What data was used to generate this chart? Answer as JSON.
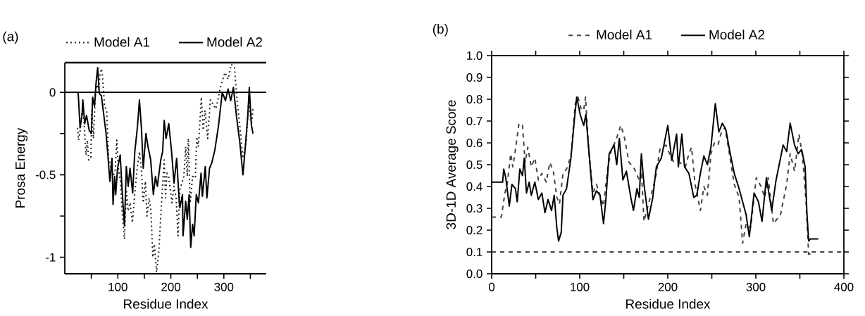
{
  "chart_data": [
    {
      "type": "line",
      "title": "(a)",
      "xlabel": "Residue Index",
      "ylabel": "Prosa Energy",
      "xlim": [
        0,
        380
      ],
      "ylim": [
        -1.1,
        0.18
      ],
      "xticks": [
        {
          "value": 50,
          "label": null
        },
        100,
        {
          "value": 150,
          "label": null
        },
        200,
        {
          "value": 250,
          "label": null
        },
        300,
        {
          "value": 350,
          "label": null
        }
      ],
      "yticks": [
        {
          "value": -1,
          "label": "-1"
        },
        {
          "value": -0.75,
          "label": null
        },
        {
          "value": -0.5,
          "label": "-0.5"
        },
        {
          "value": -0.25,
          "label": null
        },
        {
          "value": 0,
          "label": "0"
        }
      ],
      "legend": "top",
      "ref_lines": [
        {
          "axis": "y",
          "value": 0,
          "color": "#000000",
          "line_style": "solid"
        }
      ],
      "series": [
        {
          "name": "Model A1",
          "color": "#222222",
          "line_style": "dotted",
          "x": [
            24,
            26,
            29,
            32.5,
            36,
            40,
            42.5,
            45,
            49,
            51,
            54,
            57.5,
            60,
            64,
            66,
            69,
            71,
            75,
            79,
            82.5,
            87.5,
            91,
            95,
            98,
            101,
            105,
            108,
            112.5,
            116,
            119.5,
            123,
            127.5,
            132,
            137,
            140.75,
            144.5,
            148,
            152,
            155,
            159,
            162.5,
            166,
            169,
            173,
            177.5,
            181,
            187.5,
            190,
            192.5,
            196,
            202,
            206,
            210,
            213.5,
            217,
            224.5,
            228,
            231,
            233,
            236.5,
            241,
            246,
            249,
            252,
            257.5,
            261,
            264.5,
            269.5,
            274.5,
            285,
            295,
            302,
            308,
            314,
            320,
            325,
            330,
            336,
            342,
            347,
            352,
            355
          ],
          "values": [
            -0.215,
            -0.29,
            -0.23,
            -0.12,
            -0.16,
            -0.38,
            -0.29,
            -0.41,
            -0.4,
            -0.11,
            -0.28,
            -0.02,
            0.046,
            0.02,
            0.1,
            0.143,
            0.1,
            -0.085,
            -0.11,
            -0.4,
            -0.46,
            -0.51,
            -0.47,
            -0.29,
            -0.46,
            -0.54,
            -0.72,
            -0.89,
            -0.59,
            -0.72,
            -0.67,
            -0.79,
            -0.61,
            -0.45,
            -0.36,
            -0.47,
            -0.67,
            -0.54,
            -0.75,
            -0.64,
            -0.72,
            -1.0,
            -0.92,
            -1.09,
            -0.96,
            -0.75,
            -0.41,
            -0.64,
            -0.49,
            -0.51,
            -0.67,
            -0.57,
            -0.64,
            -0.87,
            -0.59,
            -0.51,
            -0.33,
            -0.51,
            -0.28,
            -0.67,
            -0.51,
            -0.52,
            -0.27,
            -0.33,
            -0.03,
            -0.23,
            -0.11,
            -0.28,
            -0.046,
            -0.1,
            0.05,
            0.12,
            0.08,
            0.17,
            0.15,
            -0.05,
            -0.2,
            -0.4,
            -0.3,
            -0.05,
            -0.2,
            -0.1
          ]
        },
        {
          "name": "Model A2",
          "color": "#000000",
          "line_style": "solid",
          "x": [
            25,
            26,
            28.75,
            32.5,
            34,
            37.5,
            41,
            46,
            50,
            52.5,
            56,
            59,
            62,
            65,
            69,
            74,
            77.5,
            81,
            85,
            89,
            91,
            94,
            96,
            99.5,
            104.5,
            108,
            112.5,
            116,
            119.5,
            123,
            128,
            132,
            137,
            140.75,
            144.5,
            148,
            153,
            157,
            162,
            167,
            171,
            174.5,
            181,
            184.5,
            187.5,
            191,
            196,
            201,
            206,
            211,
            216,
            217,
            222,
            223,
            228,
            231,
            234.5,
            237.5,
            241,
            244,
            248,
            252,
            257,
            259.5,
            265,
            268,
            273,
            277,
            283,
            290,
            297,
            303,
            308,
            313,
            318,
            324,
            330,
            336,
            340,
            345,
            348,
            352,
            355
          ],
          "values": [
            0,
            -0.046,
            -0.215,
            -0.137,
            -0.046,
            -0.19,
            -0.14,
            -0.23,
            -0.25,
            -0.03,
            -0.085,
            0.06,
            0.15,
            -0.007,
            -0.02,
            -0.15,
            -0.24,
            -0.37,
            -0.54,
            -0.4,
            -0.68,
            -0.51,
            -0.62,
            -0.46,
            -0.38,
            -0.59,
            -0.81,
            -0.45,
            -0.57,
            -0.46,
            -0.61,
            -0.36,
            -0.21,
            -0.046,
            -0.215,
            -0.46,
            -0.25,
            -0.33,
            -0.41,
            -0.62,
            -0.51,
            -0.57,
            -0.41,
            -0.36,
            -0.17,
            -0.28,
            -0.19,
            -0.345,
            -0.55,
            -0.4,
            -0.67,
            -0.7,
            -0.62,
            -0.87,
            -0.66,
            -0.77,
            -0.62,
            -0.94,
            -0.8,
            -0.87,
            -0.62,
            -0.67,
            -0.49,
            -0.63,
            -0.45,
            -0.64,
            -0.46,
            -0.43,
            -0.35,
            -0.2,
            0,
            -0.05,
            0.02,
            -0.05,
            0.03,
            -0.15,
            -0.3,
            -0.5,
            -0.35,
            -0.15,
            0.03,
            -0.2,
            -0.25
          ]
        }
      ]
    },
    {
      "type": "line",
      "title": "(b)",
      "xlabel": "Residue Index",
      "ylabel": "3D-1D Average Score",
      "xlim": [
        0,
        400
      ],
      "ylim": [
        0,
        1
      ],
      "xticks": [
        0,
        {
          "value": 50,
          "label": null
        },
        100,
        {
          "value": 150,
          "label": null
        },
        200,
        {
          "value": 250,
          "label": null
        },
        300,
        {
          "value": 350,
          "label": null
        },
        400
      ],
      "yticks": [
        {
          "value": 0,
          "label": "0.0"
        },
        {
          "value": 0.1,
          "label": "0.1"
        },
        {
          "value": 0.2,
          "label": "0.2"
        },
        {
          "value": 0.3,
          "label": "0.3"
        },
        {
          "value": 0.4,
          "label": "0.4"
        },
        {
          "value": 0.5,
          "label": "0.5"
        },
        {
          "value": 0.6,
          "label": "0.6"
        },
        {
          "value": 0.7,
          "label": "0.7"
        },
        {
          "value": 0.8,
          "label": "0.8"
        },
        {
          "value": 0.9,
          "label": "0.9"
        },
        {
          "value": 1,
          "label": "1.0"
        }
      ],
      "legend": "top",
      "ref_lines": [
        {
          "axis": "y",
          "value": 0.1,
          "color": "#444444",
          "line_style": "dashed"
        }
      ],
      "series": [
        {
          "name": "Model A1",
          "color": "#444444",
          "line_style": "dashed",
          "x": [
            0,
            11,
            15,
            17.6,
            21.6,
            24,
            27,
            31,
            35,
            38,
            41,
            45,
            49,
            53,
            57,
            62,
            66,
            70,
            74,
            77,
            81,
            85,
            90,
            95,
            98,
            102,
            104.5,
            106.6,
            110,
            115,
            119,
            127,
            132,
            136,
            141,
            146.6,
            150.5,
            156,
            161,
            167.6,
            170,
            173,
            178,
            183,
            187,
            191,
            198,
            202,
            207,
            213.7,
            220,
            224,
            227,
            231,
            237,
            241,
            245,
            249,
            253,
            257,
            261,
            265,
            270,
            275.5,
            281,
            285,
            289,
            294,
            300.5,
            306,
            310,
            314,
            320,
            328,
            335,
            339,
            344,
            349,
            353,
            357,
            360,
            365
          ],
          "values": [
            0.26,
            0.26,
            0.37,
            0.41,
            0.55,
            0.49,
            0.57,
            0.69,
            0.68,
            0.51,
            0.58,
            0.49,
            0.53,
            0.43,
            0.46,
            0.42,
            0.51,
            0.47,
            0.35,
            0.32,
            0.46,
            0.48,
            0.54,
            0.78,
            0.81,
            0.75,
            0.75,
            0.81,
            0.58,
            0.37,
            0.41,
            0.31,
            0.49,
            0.57,
            0.61,
            0.68,
            0.63,
            0.51,
            0.49,
            0.43,
            0.47,
            0.24,
            0.32,
            0.39,
            0.46,
            0.57,
            0.59,
            0.55,
            0.51,
            0.51,
            0.49,
            0.55,
            0.58,
            0.41,
            0.29,
            0.4,
            0.36,
            0.55,
            0.6,
            0.59,
            0.65,
            0.67,
            0.55,
            0.41,
            0.35,
            0.14,
            0.23,
            0.21,
            0.44,
            0.4,
            0.35,
            0.44,
            0.23,
            0.27,
            0.41,
            0.55,
            0.47,
            0.64,
            0.54,
            0.33,
            0.09,
            0.09
          ]
        },
        {
          "name": "Model A2",
          "color": "#000000",
          "line_style": "solid",
          "x": [
            0,
            12.4,
            13.7,
            16,
            20,
            23,
            27,
            29,
            32,
            35,
            37,
            39.5,
            42.6,
            45,
            49,
            53,
            57,
            60.5,
            64,
            68,
            71,
            74,
            76,
            79,
            81,
            85,
            90,
            94,
            96.6,
            100.5,
            104.5,
            107,
            110,
            115,
            119,
            123,
            127,
            129.5,
            133.4,
            139,
            142,
            145,
            149,
            153,
            158,
            161,
            165,
            167.6,
            170,
            173,
            178,
            183,
            187,
            192.6,
            196.6,
            200,
            204.5,
            210,
            212,
            216,
            219,
            224,
            229.5,
            233,
            237,
            241,
            245,
            249,
            254,
            258,
            262,
            266,
            270,
            275.5,
            281,
            285,
            289,
            292.6,
            298,
            303,
            307,
            312,
            318,
            323,
            327,
            331,
            335,
            339,
            344,
            348,
            352,
            356,
            358,
            360,
            362,
            371
          ],
          "values": [
            0.42,
            0.42,
            0.48,
            0.44,
            0.31,
            0.41,
            0.39,
            0.33,
            0.48,
            0.45,
            0.53,
            0.37,
            0.42,
            0.36,
            0.42,
            0.34,
            0.37,
            0.28,
            0.34,
            0.29,
            0.36,
            0.21,
            0.15,
            0.19,
            0.36,
            0.39,
            0.53,
            0.71,
            0.81,
            0.73,
            0.68,
            0.73,
            0.58,
            0.34,
            0.38,
            0.36,
            0.23,
            0.33,
            0.55,
            0.59,
            0.5,
            0.62,
            0.43,
            0.47,
            0.35,
            0.29,
            0.39,
            0.35,
            0.55,
            0.41,
            0.25,
            0.35,
            0.49,
            0.53,
            0.61,
            0.68,
            0.52,
            0.64,
            0.49,
            0.64,
            0.49,
            0.46,
            0.35,
            0.36,
            0.46,
            0.54,
            0.5,
            0.58,
            0.78,
            0.65,
            0.69,
            0.66,
            0.57,
            0.46,
            0.39,
            0.33,
            0.27,
            0.17,
            0.37,
            0.33,
            0.24,
            0.44,
            0.29,
            0.43,
            0.51,
            0.59,
            0.56,
            0.69,
            0.59,
            0.55,
            0.57,
            0.49,
            0.28,
            0.15,
            0.16,
            0.16
          ]
        }
      ]
    }
  ]
}
